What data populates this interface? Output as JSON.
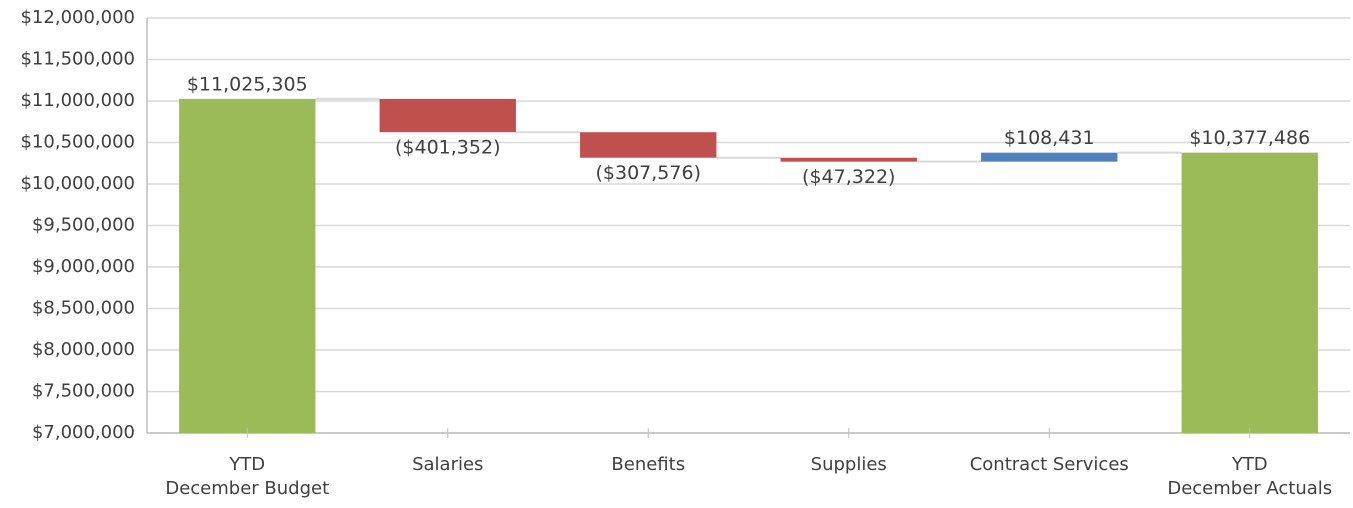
{
  "chart_data": {
    "type": "waterfall",
    "categories": [
      "YTD\nDecember Budget",
      "Salaries",
      "Benefits",
      "Supplies",
      "Contract Services",
      "YTD\nDecember Actuals"
    ],
    "values": [
      11025305,
      -401352,
      -307576,
      -47322,
      108431,
      10377486
    ],
    "value_labels": [
      "$11,025,305",
      "($401,352)",
      "($307,576)",
      "($47,322)",
      "$108,431",
      "$10,377,486"
    ],
    "is_total": [
      true,
      false,
      false,
      false,
      false,
      true
    ],
    "colors": {
      "total": "#9bbb59",
      "decrease": "#c0504d",
      "increase": "#4f81bd"
    },
    "ylim": [
      7000000,
      12000000
    ],
    "yticks": [
      {
        "value": 7000000,
        "label": "$7,000,000"
      },
      {
        "value": 7500000,
        "label": "$7,500,000"
      },
      {
        "value": 8000000,
        "label": "$8,000,000"
      },
      {
        "value": 8500000,
        "label": "$8,500,000"
      },
      {
        "value": 9000000,
        "label": "$9,000,000"
      },
      {
        "value": 9500000,
        "label": "$9,500,000"
      },
      {
        "value": 10000000,
        "label": "$10,000,000"
      },
      {
        "value": 10500000,
        "label": "$10,500,000"
      },
      {
        "value": 11000000,
        "label": "$11,000,000"
      },
      {
        "value": 11500000,
        "label": "$11,500,000"
      },
      {
        "value": 12000000,
        "label": "$12,000,000"
      }
    ],
    "grid": true
  }
}
